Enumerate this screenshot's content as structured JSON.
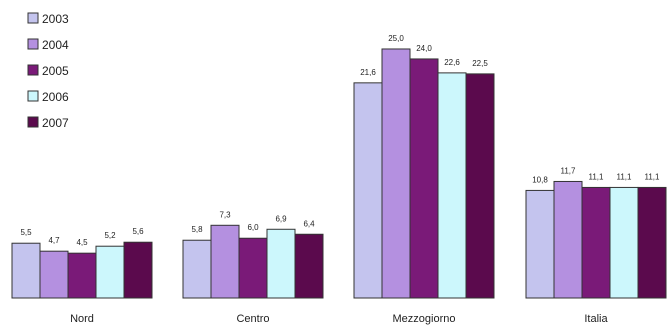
{
  "chart_data": {
    "type": "bar",
    "title": "",
    "xlabel": "",
    "ylabel": "",
    "categories": [
      "Nord",
      "Centro",
      "Mezzogiorno",
      "Italia"
    ],
    "series": [
      {
        "name": "2003",
        "color": "#c4c4ee",
        "values": [
          5.5,
          5.8,
          21.6,
          10.8
        ]
      },
      {
        "name": "2004",
        "color": "#b490e0",
        "values": [
          4.7,
          7.3,
          25.0,
          11.7
        ]
      },
      {
        "name": "2005",
        "color": "#7a1a78",
        "values": [
          4.5,
          6.0,
          24.0,
          11.1
        ]
      },
      {
        "name": "2006",
        "color": "#ccf7fc",
        "values": [
          5.2,
          6.9,
          22.6,
          11.1
        ]
      },
      {
        "name": "2007",
        "color": "#5b0a4d",
        "values": [
          5.6,
          6.4,
          22.5,
          11.1
        ]
      }
    ],
    "data_labels": [
      [
        "5,5",
        "4,7",
        "4,5",
        "5,2",
        "5,6"
      ],
      [
        "5,8",
        "7,3",
        "6,0",
        "6,9",
        "6,4"
      ],
      [
        "21,6",
        "25,0",
        "24,0",
        "22,6",
        "22,5"
      ],
      [
        "10,8",
        "11,7",
        "11,1",
        "11,1",
        "11,1"
      ]
    ],
    "ylim": [
      0,
      25.5
    ],
    "grid": false,
    "legend_position": "top-left"
  }
}
